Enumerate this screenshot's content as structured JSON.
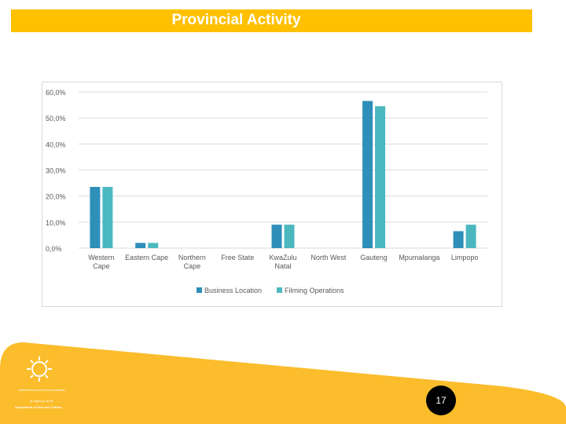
{
  "slide": {
    "title": "Provincial Activity",
    "page_number": "17",
    "org_name": "national film and video foundation",
    "org_sub": "an agency of the",
    "org_dept": "Department of Arts and Culture"
  },
  "colors": {
    "title_bar": "#ffc000",
    "footer": "#fbbd2c",
    "series_business": "#2e8fb9",
    "series_filming": "#4bb8c0",
    "gridline": "#d9d9d9",
    "axis_text": "#595959"
  },
  "chart_data": {
    "type": "bar",
    "title": "",
    "xlabel": "",
    "ylabel": "",
    "categories": [
      [
        "Western",
        "Cape"
      ],
      [
        "Eastern Cape"
      ],
      [
        "Northern",
        "Cape"
      ],
      [
        "Free State"
      ],
      [
        "KwaZulu",
        "Natal"
      ],
      [
        "North West"
      ],
      [
        "Gauteng"
      ],
      [
        "Mpumalanga"
      ],
      [
        "Limpopo"
      ]
    ],
    "series": [
      {
        "name": "Business Location",
        "values": [
          23.5,
          2.0,
          0.0,
          0.0,
          9.0,
          0.0,
          56.5,
          0.0,
          6.5
        ]
      },
      {
        "name": "Filming Operations",
        "values": [
          23.5,
          2.0,
          0.0,
          0.0,
          9.0,
          0.0,
          54.5,
          0.0,
          9.0
        ]
      }
    ],
    "ylim": [
      0,
      60
    ],
    "yticks": [
      "0,0%",
      "10,0%",
      "20,0%",
      "30,0%",
      "40,0%",
      "50,0%",
      "60,0%"
    ],
    "grid": true,
    "legend_position": "bottom"
  }
}
